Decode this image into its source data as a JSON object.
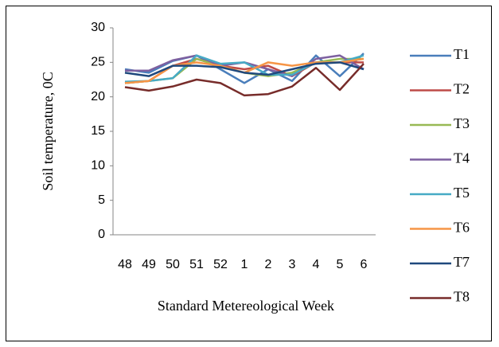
{
  "chart_data": {
    "type": "line",
    "x_label": "Standard Metereological Week",
    "y_label": "Soil temperature, 0C",
    "categories": [
      "48",
      "49",
      "50",
      "51",
      "52",
      "1",
      "2",
      "3",
      "4",
      "5",
      "6"
    ],
    "ylim": [
      0,
      30
    ],
    "yticks": [
      0,
      5,
      10,
      15,
      20,
      25,
      30
    ],
    "grid": false,
    "legend": "right",
    "series": [
      {
        "name": "T1",
        "color": "#4a7ebb",
        "values": [
          24,
          23.5,
          25.2,
          26,
          24,
          22,
          24,
          22.3,
          26,
          23,
          26.3
        ]
      },
      {
        "name": "T2",
        "color": "#be4b48",
        "values": [
          22,
          22.3,
          24.5,
          25.5,
          24.5,
          24,
          24.5,
          23,
          25,
          25,
          25
        ]
      },
      {
        "name": "T3",
        "color": "#98b954",
        "values": [
          22,
          22.3,
          22.7,
          25.5,
          24.5,
          23.5,
          23,
          23.5,
          25,
          25.5,
          25.5
        ]
      },
      {
        "name": "T4",
        "color": "#7d60a0",
        "values": [
          23.8,
          23.8,
          25.3,
          26,
          24.5,
          25,
          24,
          23,
          25.5,
          26,
          24
        ]
      },
      {
        "name": "T5",
        "color": "#46aac5",
        "values": [
          22.2,
          22.3,
          22.7,
          26,
          24.8,
          25,
          23.2,
          23.2,
          25,
          25,
          26
        ]
      },
      {
        "name": "T6",
        "color": "#f69546",
        "values": [
          22,
          22.3,
          24.5,
          25,
          24.5,
          23.5,
          25,
          24.5,
          25,
          25,
          25.5
        ]
      },
      {
        "name": "T7",
        "color": "#1f497d",
        "values": [
          23.5,
          23,
          24.5,
          24.5,
          24.3,
          23.5,
          23.2,
          24,
          24.8,
          25,
          24
        ]
      },
      {
        "name": "T8",
        "color": "#772c2a",
        "values": [
          21.4,
          20.9,
          21.5,
          22.5,
          22,
          20.2,
          20.4,
          21.5,
          24.2,
          21,
          24.8
        ]
      }
    ]
  }
}
